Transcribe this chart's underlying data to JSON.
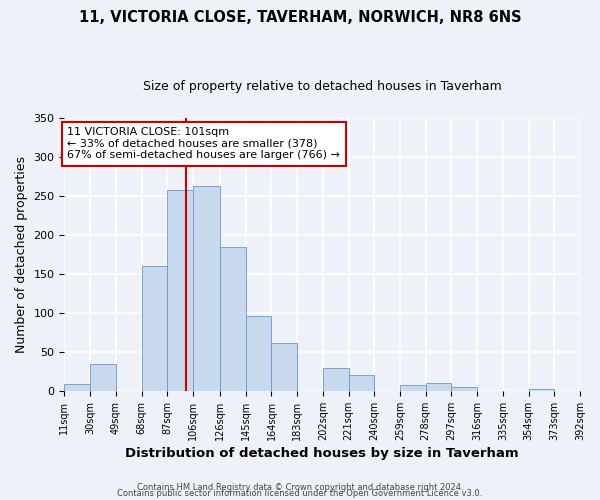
{
  "title": "11, VICTORIA CLOSE, TAVERHAM, NORWICH, NR8 6NS",
  "subtitle": "Size of property relative to detached houses in Taverham",
  "xlabel": "Distribution of detached houses by size in Taverham",
  "ylabel": "Number of detached properties",
  "bin_edges": [
    11,
    30,
    49,
    68,
    87,
    106,
    126,
    145,
    164,
    183,
    202,
    221,
    240,
    259,
    278,
    297,
    316,
    335,
    354,
    373,
    392
  ],
  "bin_counts": [
    9,
    35,
    0,
    160,
    258,
    262,
    185,
    96,
    62,
    0,
    30,
    21,
    0,
    7,
    10,
    5,
    0,
    0,
    2,
    0
  ],
  "bar_color": "#c8d9ee",
  "bar_edge_color": "#6699cc",
  "property_value": 101,
  "vline_color": "#cc0000",
  "annotation_text": "11 VICTORIA CLOSE: 101sqm\n← 33% of detached houses are smaller (378)\n67% of semi-detached houses are larger (766) →",
  "annotation_box_color": "#ffffff",
  "annotation_box_edge_color": "#cc0000",
  "ylim": [
    0,
    350
  ],
  "yticks": [
    0,
    50,
    100,
    150,
    200,
    250,
    300,
    350
  ],
  "tick_labels": [
    "11sqm",
    "30sqm",
    "49sqm",
    "68sqm",
    "87sqm",
    "106sqm",
    "126sqm",
    "145sqm",
    "164sqm",
    "183sqm",
    "202sqm",
    "221sqm",
    "240sqm",
    "259sqm",
    "278sqm",
    "297sqm",
    "316sqm",
    "335sqm",
    "354sqm",
    "373sqm",
    "392sqm"
  ],
  "footer_line1": "Contains HM Land Registry data © Crown copyright and database right 2024.",
  "footer_line2": "Contains public sector information licensed under the Open Government Licence v3.0.",
  "background_color": "#eef2f8",
  "grid_color": "#ffffff",
  "title_fontsize": 10.5,
  "subtitle_fontsize": 9,
  "axis_label_fontsize": 9,
  "tick_fontsize": 7,
  "footer_fontsize": 6,
  "annotation_fontsize": 8
}
